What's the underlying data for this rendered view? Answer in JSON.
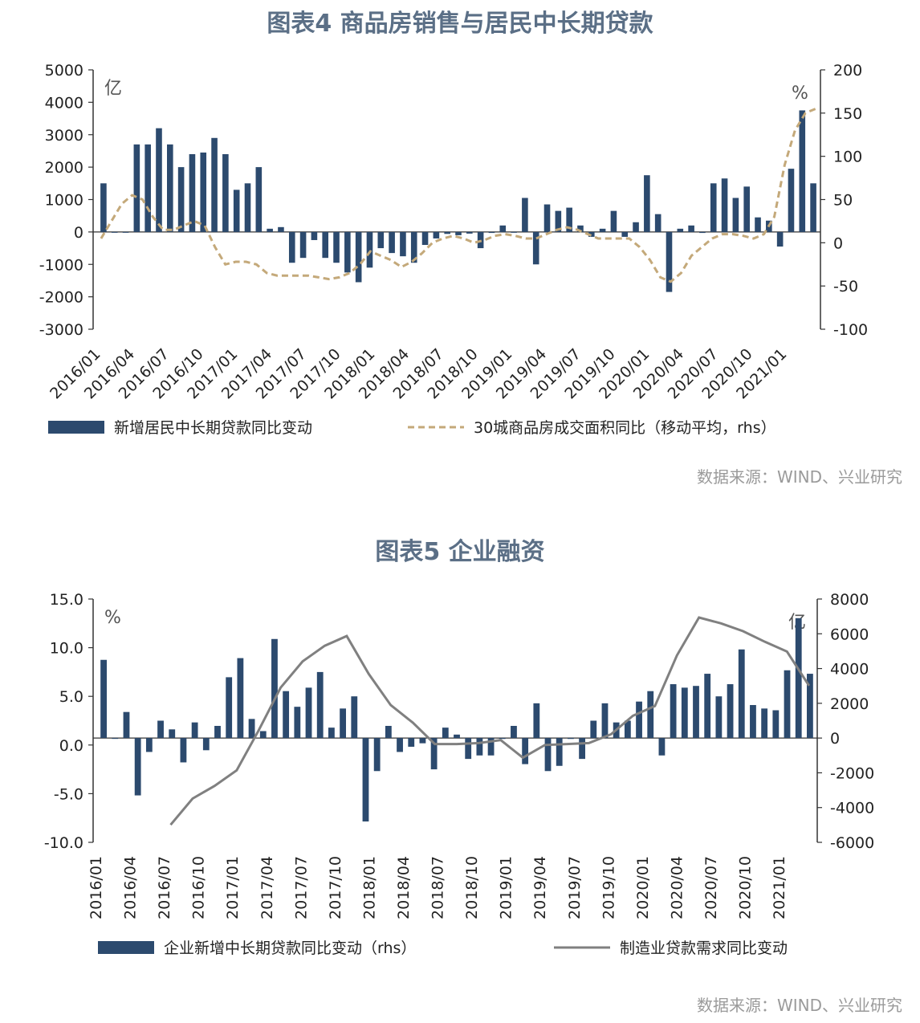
{
  "chart_data": [
    {
      "type": "bar",
      "title": "图表4 商品房销售与居民中长期贷款",
      "source": "数据来源：WIND、兴业研究",
      "left_unit": "亿",
      "right_unit": "%",
      "ylim_left": [
        -3000,
        5000
      ],
      "ylim_right": [
        -100,
        200
      ],
      "yticks_left": [
        "5000",
        "4000",
        "3000",
        "2000",
        "1000",
        "0",
        "-1000",
        "-2000",
        "-3000"
      ],
      "yticks_right": [
        "200",
        "150",
        "100",
        "50",
        "0",
        "-50",
        "-100"
      ],
      "x_tick_labels": [
        "2016/01",
        "2016/04",
        "2016/07",
        "2016/10",
        "2017/01",
        "2017/04",
        "2017/07",
        "2017/10",
        "2018/01",
        "2018/04",
        "2018/07",
        "2018/10",
        "2019/01",
        "2019/04",
        "2019/07",
        "2019/10",
        "2020/01",
        "2020/04",
        "2020/07",
        "2020/10",
        "2021/01"
      ],
      "legend_placement": "bottom",
      "colors": {
        "bars": "#2c4a6e",
        "line": "#c4a97a"
      },
      "series": [
        {
          "name": "新增居民中长期贷款同比变动",
          "type": "bar",
          "axis": "left",
          "values": [
            1500,
            -20,
            0,
            2700,
            2700,
            3200,
            2700,
            2000,
            2400,
            2450,
            2900,
            2400,
            1300,
            1500,
            2000,
            100,
            150,
            -950,
            -800,
            -250,
            -800,
            -950,
            -1250,
            -1550,
            -1100,
            -500,
            -650,
            -750,
            -950,
            -400,
            -200,
            -60,
            -100,
            -50,
            -500,
            -30,
            200,
            -20,
            1050,
            -1000,
            850,
            650,
            750,
            200,
            -150,
            100,
            650,
            -150,
            300,
            1750,
            550,
            -1850,
            100,
            200,
            -30,
            1500,
            1650,
            1050,
            1400,
            450,
            350,
            -450,
            1950,
            3750,
            1500
          ]
        },
        {
          "name": "30城商品房成交面积同比（移动平均，rhs）",
          "type": "line",
          "axis": "right",
          "style": "dashed",
          "values": [
            5,
            25,
            45,
            55,
            50,
            30,
            15,
            15,
            20,
            25,
            20,
            -5,
            -25,
            -22,
            -22,
            -25,
            -35,
            -38,
            -38,
            -38,
            -38,
            -40,
            -42,
            -40,
            -35,
            -25,
            -10,
            -15,
            -20,
            -28,
            -22,
            -12,
            0,
            5,
            8,
            5,
            0,
            3,
            8,
            10,
            8,
            5,
            5,
            10,
            15,
            18,
            15,
            10,
            5,
            5,
            5,
            5,
            -5,
            -20,
            -40,
            -45,
            -35,
            -15,
            -5,
            5,
            10,
            10,
            8,
            5,
            10,
            30,
            90,
            130,
            150,
            155
          ]
        }
      ]
    },
    {
      "type": "bar",
      "title": "图表5 企业融资",
      "source": "数据来源：WIND、兴业研究",
      "left_unit": "%",
      "right_unit": "亿",
      "ylim_left": [
        -10,
        15
      ],
      "ylim_right": [
        -6000,
        8000
      ],
      "yticks_left": [
        "15.0",
        "10.0",
        "5.0",
        "0.0",
        "-5.0",
        "-10.0"
      ],
      "yticks_right": [
        "8000",
        "6000",
        "4000",
        "2000",
        "0",
        "-2000",
        "-4000",
        "-6000"
      ],
      "x_tick_labels": [
        "2016/01",
        "2016/04",
        "2016/07",
        "2016/10",
        "2017/01",
        "2017/04",
        "2017/07",
        "2017/10",
        "2018/01",
        "2018/04",
        "2018/07",
        "2018/10",
        "2019/01",
        "2019/04",
        "2019/07",
        "2019/10",
        "2020/01",
        "2020/04",
        "2020/07",
        "2020/10",
        "2021/01"
      ],
      "legend_placement": "bottom",
      "colors": {
        "bars": "#2c4a6e",
        "line": "#808080"
      },
      "series": [
        {
          "name": "企业新增中长期贷款同比变动（rhs）",
          "type": "bar",
          "axis": "right",
          "values": [
            4500,
            0,
            1500,
            -3300,
            -800,
            1000,
            500,
            -1400,
            900,
            -700,
            700,
            3500,
            4600,
            1100,
            400,
            5700,
            2700,
            1800,
            2900,
            3800,
            600,
            1700,
            2400,
            -4800,
            -1900,
            700,
            -800,
            -500,
            -300,
            -1800,
            600,
            200,
            -1200,
            -1000,
            -1000,
            -50,
            700,
            -1500,
            2000,
            -1900,
            -1600,
            -50,
            -1200,
            1000,
            2000,
            900,
            1000,
            2100,
            2700,
            -1000,
            3100,
            2900,
            3000,
            3700,
            2400,
            3100,
            5100,
            1900,
            1700,
            1600,
            3900,
            6900,
            3700
          ]
        },
        {
          "name": "制造业贷款需求同比变动",
          "type": "line",
          "axis": "left",
          "values": [
            null,
            null,
            null,
            -8.2,
            -5.5,
            -4.2,
            -2.6,
            1.5,
            5.9,
            8.6,
            10.2,
            11.2,
            7.3,
            4.1,
            2.3,
            0.1,
            0.1,
            0.2,
            0.5,
            -1.3,
            0.0,
            0.1,
            0.2,
            1.1,
            3.0,
            4.0,
            9.2,
            13.1,
            12.5,
            11.7,
            10.6,
            9.6,
            6.1
          ]
        }
      ]
    }
  ]
}
